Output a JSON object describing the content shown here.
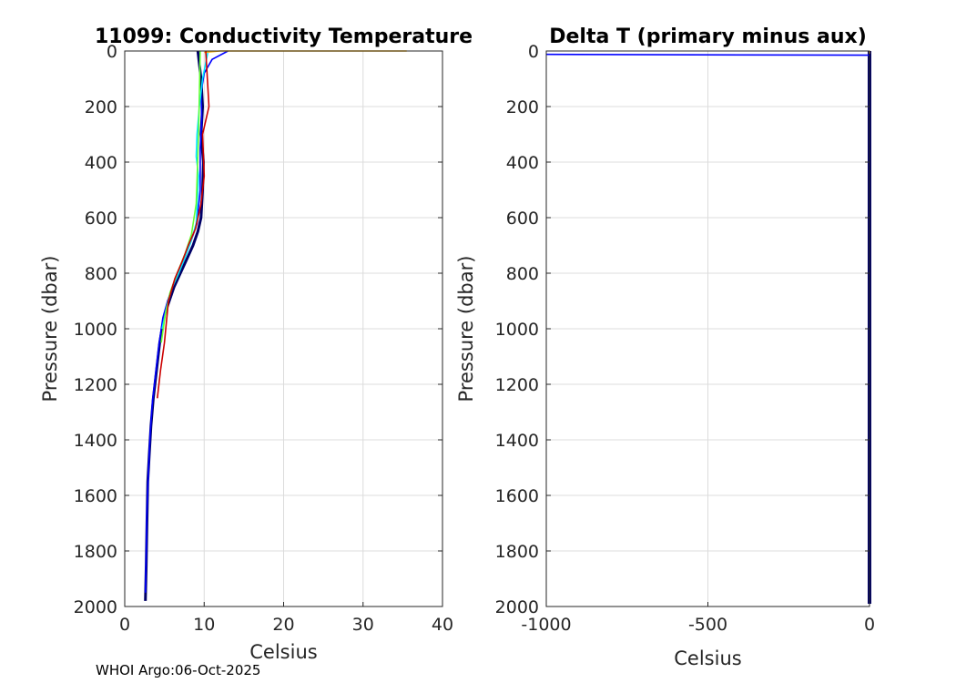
{
  "footer": "WHOI Argo:06-Oct-2025",
  "chart_data": [
    {
      "type": "line",
      "title": "11099: Conductivity Temperature",
      "xlabel": "Celsius",
      "ylabel": "Pressure (dbar)",
      "xlim": [
        0,
        40
      ],
      "ylim": [
        2000,
        0
      ],
      "y_reversed": true,
      "grid": true,
      "xticks": [
        "0",
        "10",
        "20",
        "30",
        "40"
      ],
      "yticks": [
        "0",
        "200",
        "400",
        "600",
        "800",
        "1000",
        "1200",
        "1400",
        "1600",
        "1800",
        "2000"
      ],
      "series": [
        {
          "color": "#000066",
          "x": [
            9.2,
            9.6,
            9.8,
            9.6,
            9.9,
            9.8,
            9.6,
            9.2,
            8.6,
            7.8,
            7.0,
            6.2,
            5.6,
            5.0,
            4.4,
            4.0,
            3.6,
            3.3,
            3.1,
            2.9,
            2.8,
            2.7,
            2.6
          ],
          "y": [
            0,
            100,
            200,
            300,
            400,
            500,
            600,
            650,
            700,
            750,
            800,
            850,
            900,
            950,
            1050,
            1150,
            1250,
            1350,
            1450,
            1550,
            1700,
            1850,
            1980
          ]
        },
        {
          "color": "#0000ff",
          "x": [
            13.0,
            11.0,
            10.0,
            9.6,
            9.7,
            9.5,
            9.5,
            9.1,
            8.4,
            7.6,
            6.9,
            6.1,
            5.4,
            4.8,
            4.3,
            3.9,
            3.5,
            3.2,
            3.0,
            2.8,
            2.7,
            2.6
          ],
          "y": [
            0,
            30,
            80,
            150,
            250,
            350,
            500,
            620,
            680,
            740,
            790,
            840,
            900,
            960,
            1060,
            1160,
            1260,
            1380,
            1500,
            1650,
            1800,
            1950
          ]
        },
        {
          "color": "#00e5ff",
          "x": [
            10.5,
            9.8,
            9.4,
            9.1,
            9.0,
            9.3,
            9.0,
            8.3,
            7.5,
            6.8,
            6.0,
            5.3,
            4.7
          ],
          "y": [
            0,
            100,
            200,
            300,
            380,
            450,
            620,
            690,
            750,
            800,
            850,
            920,
            1000
          ]
        },
        {
          "color": "#66ff33",
          "x": [
            9.5,
            9.3,
            9.0,
            8.4,
            7.6,
            6.6,
            5.7,
            5.1,
            4.6
          ],
          "y": [
            0,
            300,
            550,
            660,
            730,
            800,
            870,
            950,
            1050
          ]
        },
        {
          "color": "#ffb000",
          "x": [
            35.5,
            12.0,
            10.0
          ],
          "y": [
            0,
            0,
            5
          ]
        },
        {
          "color": "#cc0000",
          "x": [
            10.2,
            10.6,
            10.2,
            9.8,
            10.0,
            9.6,
            8.9,
            8.0,
            7.2,
            6.3,
            5.5,
            5.0,
            4.5,
            4.1
          ],
          "y": [
            0,
            200,
            250,
            300,
            450,
            550,
            640,
            700,
            760,
            820,
            900,
            1050,
            1150,
            1250
          ]
        }
      ]
    },
    {
      "type": "line",
      "title": "Delta T (primary minus aux)",
      "xlabel": "Celsius",
      "ylabel": "Pressure (dbar)",
      "xlim": [
        -1000,
        0
      ],
      "ylim": [
        2000,
        0
      ],
      "y_reversed": true,
      "grid": true,
      "xticks": [
        "-1000",
        "-500",
        "0"
      ],
      "yticks": [
        "0",
        "200",
        "400",
        "600",
        "800",
        "1000",
        "1200",
        "1400",
        "1600",
        "1800",
        "2000"
      ],
      "series": [
        {
          "color": "#000066",
          "x": [
            0,
            0,
            0
          ],
          "y": [
            0,
            1000,
            1990
          ]
        },
        {
          "color": "#0000ff",
          "x": [
            -1000,
            -400,
            0
          ],
          "y": [
            12,
            14,
            15
          ]
        },
        {
          "color": "#ffb000",
          "x": [
            0,
            0
          ],
          "y": [
            0,
            10
          ]
        }
      ]
    }
  ]
}
